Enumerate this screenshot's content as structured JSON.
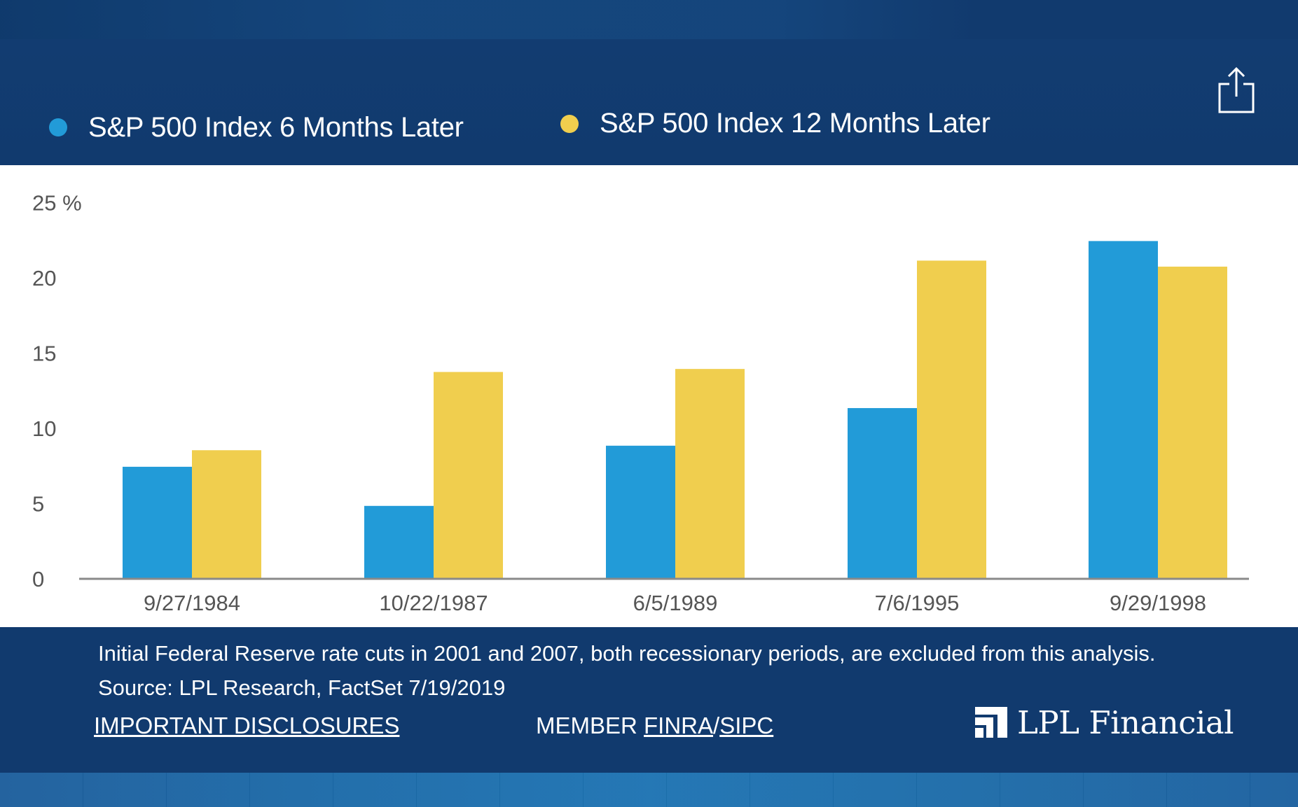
{
  "legend": {
    "series_6": {
      "label": "S&P 500 Index 6 Months Later",
      "color": "#229bd8"
    },
    "series_12": {
      "label": "S&P 500 Index 12 Months Later",
      "color": "#f0ce4e"
    }
  },
  "share": {
    "icon": "share-icon"
  },
  "chart_data": {
    "type": "bar",
    "title": "",
    "xlabel": "",
    "ylabel": "",
    "ylim": [
      0,
      25
    ],
    "yticks": [
      0,
      5,
      10,
      15,
      20,
      25
    ],
    "ytick_labels": [
      "0",
      "5",
      "10",
      "15",
      "20",
      "25 %"
    ],
    "categories": [
      "9/27/1984",
      "10/22/1987",
      "6/5/1989",
      "7/6/1995",
      "9/29/1998"
    ],
    "series": [
      {
        "name": "S&P 500 Index 6 Months Later",
        "color": "#229bd8",
        "values": [
          7.4,
          4.8,
          8.8,
          11.3,
          22.4
        ]
      },
      {
        "name": "S&P 500 Index 12 Months Later",
        "color": "#f0ce4e",
        "values": [
          8.5,
          13.7,
          13.9,
          21.1,
          20.7
        ]
      }
    ],
    "grid": false,
    "legend_position": "top"
  },
  "footer": {
    "note": "Initial Federal Reserve rate cuts in 2001 and 2007, both recessionary periods, are excluded from this analysis.",
    "source": "Source: LPL Research, FactSet  7/19/2019",
    "disclosures": "IMPORTANT DISCLOSURES",
    "member_prefix": "MEMBER ",
    "finra": "FINRA",
    "separator": "/",
    "sipc": "SIPC",
    "logo_text": "LPL Financial"
  }
}
